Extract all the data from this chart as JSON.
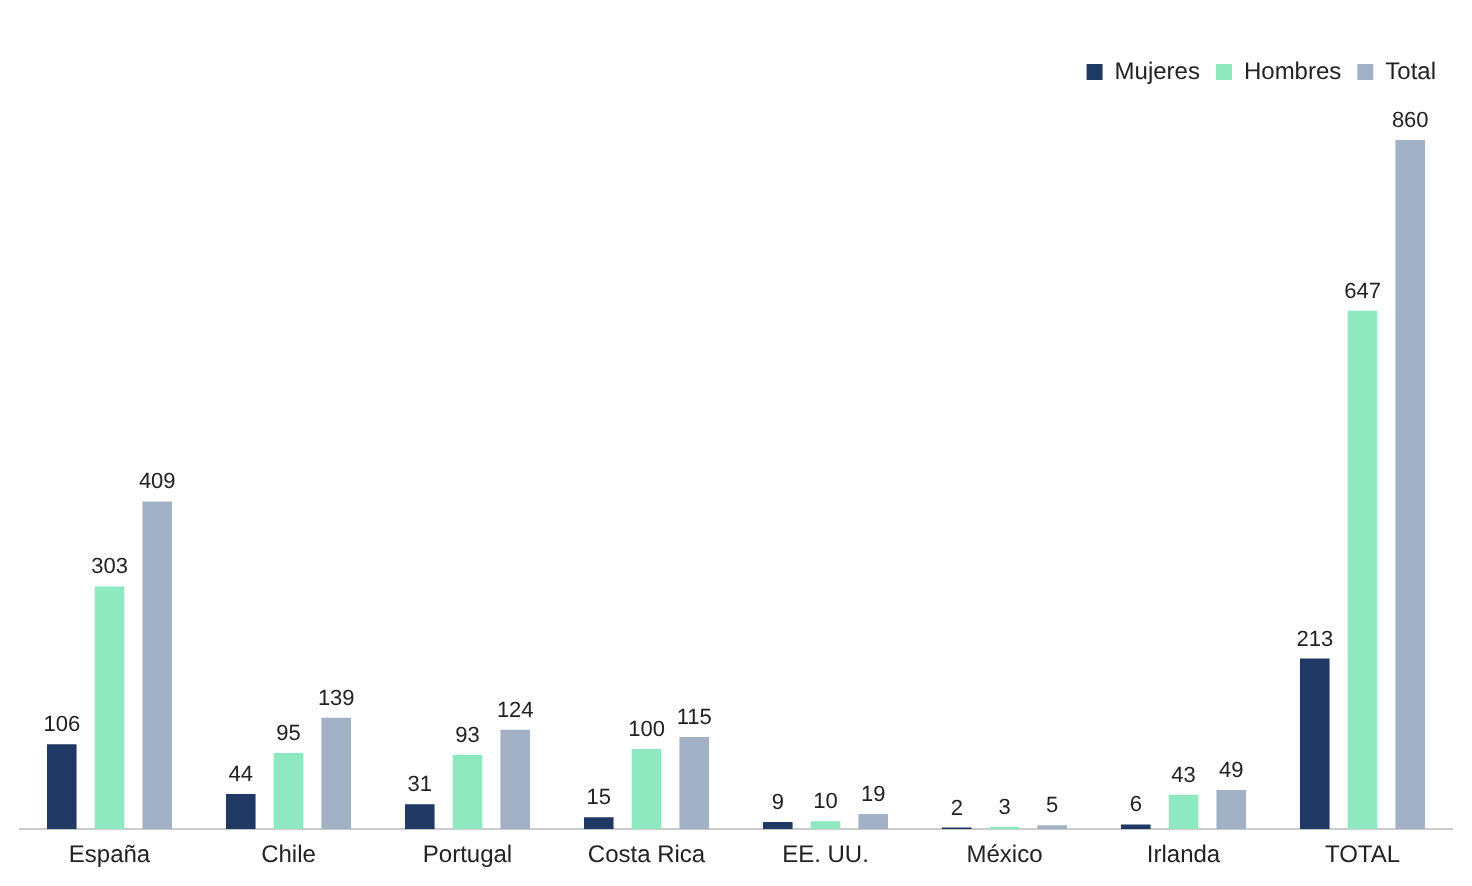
{
  "chart_data": {
    "type": "bar",
    "categories": [
      "España",
      "Chile",
      "Portugal",
      "Costa Rica",
      "EE. UU.",
      "México",
      "Irlanda",
      "TOTAL"
    ],
    "series": [
      {
        "name": "Mujeres",
        "color": "#1f3864",
        "values": [
          106,
          44,
          31,
          15,
          9,
          2,
          6,
          213
        ]
      },
      {
        "name": "Hombres",
        "color": "#8ee8c0",
        "values": [
          303,
          95,
          93,
          100,
          10,
          3,
          43,
          647
        ]
      },
      {
        "name": "Total",
        "color": "#a3b1c6",
        "values": [
          409,
          139,
          124,
          115,
          19,
          5,
          49,
          860
        ]
      }
    ],
    "data_labels": true,
    "legend": "top right",
    "grid": false
  }
}
